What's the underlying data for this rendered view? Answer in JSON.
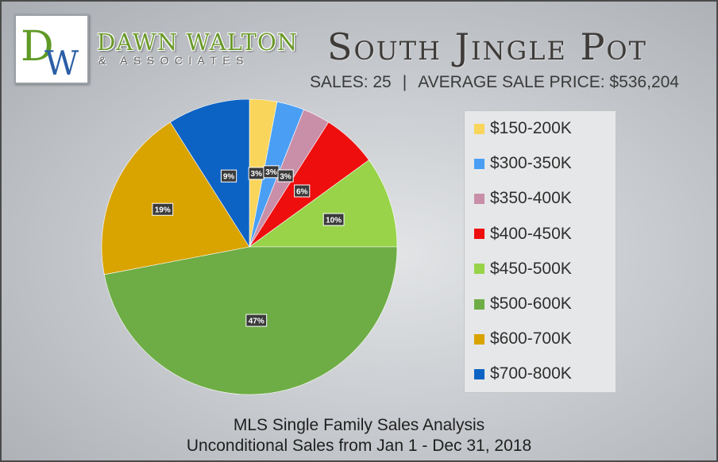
{
  "brand": {
    "monogram": "DW",
    "name": "DAWN WALTON",
    "sub": "& ASSOCIATES",
    "colors": {
      "green": "#5f9a25",
      "blue": "#2b5fa6"
    }
  },
  "header": {
    "title": "South Jingle Pot",
    "sales_text": "SALES: 25",
    "separator": "|",
    "avg_text": "AVERAGE SALE PRICE: $536,204"
  },
  "footer": {
    "line1": "MLS Single Family Sales Analysis",
    "line2": "Unconditional Sales from Jan 1 - Dec 31, 2018"
  },
  "chart_data": {
    "type": "pie",
    "title": "South Jingle Pot",
    "legend_position": "right",
    "start_angle_deg": 0,
    "direction": "clockwise",
    "slices": [
      {
        "label": "$150-200K",
        "value": 3,
        "pct_label": "3%",
        "color": "#f9d55b"
      },
      {
        "label": "$300-350K",
        "value": 3,
        "pct_label": "3%",
        "color": "#4a9ff5"
      },
      {
        "label": "$350-400K",
        "value": 3,
        "pct_label": "3%",
        "color": "#c98fa8"
      },
      {
        "label": "$400-450K",
        "value": 6,
        "pct_label": "6%",
        "color": "#ee0e0e"
      },
      {
        "label": "$450-500K",
        "value": 10,
        "pct_label": "10%",
        "color": "#98d34a"
      },
      {
        "label": "$500-600K",
        "value": 47,
        "pct_label": "47%",
        "color": "#6ead46"
      },
      {
        "label": "$600-700K",
        "value": 19,
        "pct_label": "19%",
        "color": "#d9a300"
      },
      {
        "label": "$700-800K",
        "value": 9,
        "pct_label": "9%",
        "color": "#0d63c4"
      }
    ]
  }
}
